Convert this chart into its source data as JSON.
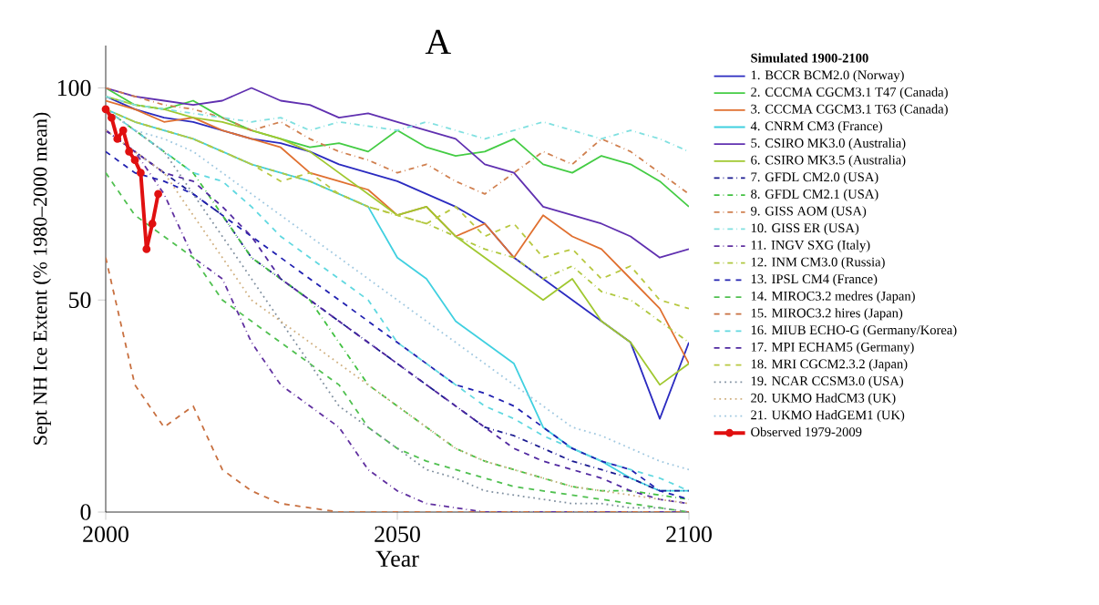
{
  "chart_data": {
    "type": "line",
    "title": "A",
    "xlabel": "Year",
    "ylabel": "Sept NH Ice Extent (% 1980–2000 mean)",
    "legend_title": "Simulated 1900-2100",
    "legend": "right",
    "grid": false,
    "x": [
      2000,
      2005,
      2010,
      2015,
      2020,
      2025,
      2030,
      2035,
      2040,
      2045,
      2050,
      2055,
      2060,
      2065,
      2070,
      2075,
      2080,
      2085,
      2090,
      2095,
      2100
    ],
    "xlim": [
      2000,
      2100
    ],
    "ylim": [
      0,
      110
    ],
    "xticks": [
      2000,
      2050,
      2100
    ],
    "yticks": [
      0,
      50,
      100
    ],
    "series": [
      {
        "name": "1. BCCR BCM2.0 (Norway)",
        "color": "#2b2bc0",
        "line_style": "solid",
        "values": [
          98,
          95,
          93,
          92,
          90,
          88,
          87,
          85,
          82,
          80,
          78,
          75,
          72,
          68,
          60,
          55,
          50,
          45,
          40,
          22,
          40
        ]
      },
      {
        "name": "2. CCCMA CGCM3.1 T47 (Canada)",
        "color": "#44cc44",
        "line_style": "solid",
        "values": [
          100,
          96,
          95,
          97,
          93,
          90,
          88,
          86,
          87,
          85,
          90,
          86,
          84,
          85,
          88,
          82,
          80,
          84,
          82,
          78,
          72
        ]
      },
      {
        "name": "3. CCCMA CGCM3.1 T63 (Canada)",
        "color": "#e07030",
        "line_style": "solid",
        "values": [
          97,
          95,
          92,
          93,
          90,
          88,
          86,
          80,
          78,
          76,
          70,
          72,
          65,
          68,
          60,
          70,
          65,
          62,
          55,
          48,
          35
        ]
      },
      {
        "name": "4. CNRM CM3 (France)",
        "color": "#40d0e0",
        "line_style": "solid",
        "values": [
          95,
          92,
          90,
          88,
          85,
          82,
          80,
          78,
          75,
          72,
          60,
          55,
          45,
          40,
          35,
          20,
          15,
          12,
          8,
          5,
          5
        ]
      },
      {
        "name": "5. CSIRO MK3.0 (Australia)",
        "color": "#6030b0",
        "line_style": "solid",
        "values": [
          100,
          98,
          97,
          96,
          97,
          100,
          97,
          96,
          93,
          94,
          92,
          90,
          88,
          82,
          80,
          72,
          70,
          68,
          65,
          60,
          62
        ]
      },
      {
        "name": "6. CSIRO MK3.5 (Australia)",
        "color": "#a0c830",
        "line_style": "solid",
        "values": [
          98,
          96,
          95,
          93,
          92,
          90,
          88,
          85,
          80,
          75,
          70,
          72,
          65,
          60,
          55,
          50,
          55,
          45,
          40,
          30,
          35
        ]
      },
      {
        "name": "7. GFDL CM2.0 (USA)",
        "color": "#1a1a90",
        "line_style": "dashdot",
        "values": [
          90,
          85,
          80,
          75,
          70,
          60,
          55,
          50,
          45,
          40,
          35,
          30,
          25,
          20,
          18,
          15,
          12,
          10,
          8,
          5,
          5
        ]
      },
      {
        "name": "8. GFDL CM2.1 (USA)",
        "color": "#40c040",
        "line_style": "dashdot",
        "values": [
          95,
          90,
          85,
          80,
          70,
          60,
          55,
          50,
          40,
          30,
          25,
          20,
          15,
          12,
          10,
          8,
          6,
          5,
          5,
          4,
          3
        ]
      },
      {
        "name": "9. GISS AOM (USA)",
        "color": "#d08050",
        "line_style": "dashdot",
        "values": [
          100,
          98,
          96,
          95,
          93,
          90,
          92,
          88,
          85,
          83,
          80,
          82,
          78,
          75,
          80,
          85,
          82,
          88,
          85,
          80,
          75
        ]
      },
      {
        "name": "10. GISS ER (USA)",
        "color": "#80e0e0",
        "line_style": "dashdot",
        "values": [
          98,
          96,
          95,
          94,
          93,
          92,
          93,
          90,
          92,
          91,
          90,
          92,
          90,
          88,
          90,
          92,
          90,
          88,
          90,
          88,
          85
        ]
      },
      {
        "name": "11. INGV SXG (Italy)",
        "color": "#6030a0",
        "line_style": "dashdot",
        "values": [
          90,
          85,
          75,
          60,
          55,
          40,
          30,
          25,
          20,
          10,
          5,
          2,
          1,
          0,
          0,
          0,
          0,
          0,
          0,
          0,
          0
        ]
      },
      {
        "name": "12. INM CM3.0 (Russia)",
        "color": "#b0c840",
        "line_style": "dashdot",
        "values": [
          95,
          92,
          90,
          88,
          85,
          82,
          80,
          78,
          75,
          72,
          70,
          68,
          65,
          62,
          60,
          55,
          58,
          52,
          50,
          45,
          40
        ]
      },
      {
        "name": "13. IPSL CM4 (France)",
        "color": "#2020b0",
        "line_style": "dashed",
        "values": [
          85,
          80,
          78,
          75,
          70,
          65,
          60,
          55,
          50,
          45,
          40,
          35,
          30,
          28,
          25,
          20,
          15,
          12,
          10,
          5,
          3
        ]
      },
      {
        "name": "14. MIROC3.2 medres (Japan)",
        "color": "#50c050",
        "line_style": "dashed",
        "values": [
          80,
          70,
          65,
          60,
          50,
          45,
          40,
          35,
          30,
          20,
          15,
          12,
          10,
          8,
          6,
          5,
          4,
          3,
          2,
          1,
          0
        ]
      },
      {
        "name": "15. MIROC3.2 hires (Japan)",
        "color": "#c87040",
        "line_style": "dashed",
        "values": [
          60,
          30,
          20,
          25,
          10,
          5,
          2,
          1,
          0,
          0,
          0,
          0,
          0,
          0,
          0,
          0,
          0,
          0,
          0,
          0,
          0
        ]
      },
      {
        "name": "16. MIUB ECHO-G (Germany/Korea)",
        "color": "#60d8e0",
        "line_style": "dashed",
        "values": [
          95,
          90,
          85,
          80,
          78,
          72,
          65,
          60,
          55,
          50,
          40,
          35,
          30,
          25,
          22,
          18,
          15,
          12,
          10,
          8,
          5
        ]
      },
      {
        "name": "17. MPI ECHAM5 (Germany)",
        "color": "#5028a0",
        "line_style": "dashed",
        "values": [
          90,
          85,
          80,
          78,
          72,
          65,
          55,
          50,
          45,
          40,
          35,
          30,
          25,
          20,
          15,
          12,
          10,
          8,
          5,
          3,
          2
        ]
      },
      {
        "name": "18. MRI CGCM2.3.2 (Japan)",
        "color": "#b8c840",
        "line_style": "dashed",
        "values": [
          95,
          92,
          90,
          88,
          85,
          82,
          78,
          80,
          75,
          72,
          70,
          68,
          72,
          65,
          68,
          60,
          62,
          55,
          58,
          50,
          48
        ]
      },
      {
        "name": "19. NCAR CCSM3.0 (USA)",
        "color": "#8090a0",
        "line_style": "dotted",
        "values": [
          95,
          90,
          85,
          75,
          65,
          55,
          45,
          35,
          25,
          20,
          15,
          10,
          8,
          5,
          4,
          3,
          2,
          2,
          1,
          1,
          0
        ]
      },
      {
        "name": "20. UKMO HadCM3 (UK)",
        "color": "#d0b080",
        "line_style": "dotted",
        "values": [
          90,
          85,
          80,
          70,
          60,
          50,
          45,
          40,
          35,
          30,
          25,
          20,
          15,
          12,
          10,
          8,
          6,
          5,
          4,
          3,
          2
        ]
      },
      {
        "name": "21. UKMO HadGEM1 (UK)",
        "color": "#a0c8e0",
        "line_style": "dotted",
        "values": [
          95,
          90,
          88,
          85,
          80,
          75,
          70,
          65,
          60,
          55,
          50,
          45,
          40,
          35,
          30,
          25,
          20,
          18,
          15,
          12,
          10
        ]
      },
      {
        "name": "Observed 1979-2009",
        "color": "#e01010",
        "line_style": "solid",
        "marker": "circle",
        "x": [
          2000,
          2001,
          2002,
          2003,
          2004,
          2005,
          2006,
          2007,
          2008,
          2009
        ],
        "values": [
          95,
          93,
          88,
          90,
          85,
          83,
          80,
          62,
          68,
          75
        ]
      }
    ]
  }
}
